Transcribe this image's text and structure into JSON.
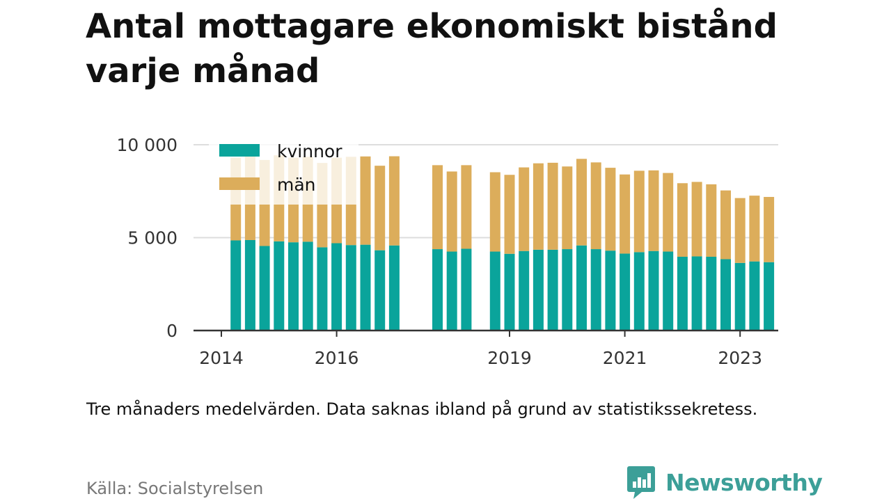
{
  "title": "Antal mottagare ekonomiskt bistånd varje månad",
  "note": "Tre månaders medelvärden. Data saknas ibland på grund av statistikssekretess.",
  "source": "Källa: Socialstyrelsen",
  "brand": "Newsworthy",
  "colors": {
    "kvinnor": "#0aa49b",
    "man": "#dcad5b",
    "brand": "#3c9f98",
    "grid": "#dddddd",
    "axis": "#333333"
  },
  "chart_data": {
    "type": "bar",
    "stacked": true,
    "xlabel": "",
    "ylabel": "",
    "ylim": [
      0,
      10000
    ],
    "yticks": [
      0,
      5000,
      10000
    ],
    "ytick_labels": [
      "0",
      "5 000",
      "10 000"
    ],
    "xticks": [
      2014,
      2016,
      2019,
      2021,
      2023
    ],
    "legend": {
      "placement": "top-left"
    },
    "x": [
      2014.25,
      2014.5,
      2014.75,
      2015.0,
      2015.25,
      2015.5,
      2015.75,
      2016.0,
      2016.25,
      2016.5,
      2016.75,
      2017.0,
      2017.75,
      2018.0,
      2018.25,
      2018.75,
      2019.0,
      2019.25,
      2019.5,
      2019.75,
      2020.0,
      2020.25,
      2020.5,
      2020.75,
      2021.0,
      2021.25,
      2021.5,
      2021.75,
      2022.0,
      2022.25,
      2022.5,
      2022.75,
      2023.0,
      2023.25,
      2023.5
    ],
    "series": [
      {
        "name": "kvinnor",
        "values": [
          4850,
          4870,
          4550,
          4800,
          4750,
          4780,
          4480,
          4700,
          4600,
          4620,
          4320,
          4580,
          4380,
          4250,
          4400,
          4250,
          4130,
          4280,
          4350,
          4350,
          4380,
          4580,
          4380,
          4300,
          4140,
          4220,
          4280,
          4250,
          3970,
          3990,
          3970,
          3840,
          3640,
          3720,
          3680
        ]
      },
      {
        "name": "män",
        "values": [
          4450,
          4500,
          4630,
          4630,
          4550,
          4570,
          4540,
          4600,
          4750,
          4750,
          4550,
          4800,
          4520,
          4310,
          4500,
          4270,
          4250,
          4500,
          4650,
          4680,
          4450,
          4660,
          4670,
          4460,
          4260,
          4380,
          4340,
          4230,
          3960,
          4010,
          3900,
          3700,
          3490,
          3540,
          3510
        ]
      }
    ]
  }
}
